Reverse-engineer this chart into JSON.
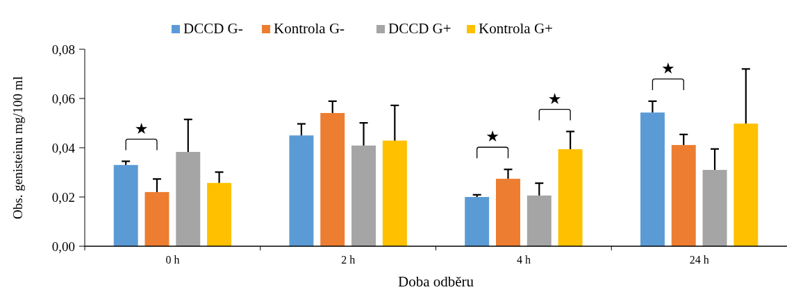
{
  "chart_data": {
    "type": "bar",
    "xlabel": "Doba odběru",
    "ylabel": "Obs. genisteinu mg/100 ml",
    "categories": [
      "0 h",
      "2 h",
      "4 h",
      "24 h"
    ],
    "series": [
      {
        "name": "DCCD G-",
        "color": "#5b9bd5",
        "values": [
          0.033,
          0.045,
          0.02,
          0.0543
        ],
        "errors": [
          [
            0.033,
            0.0345
          ],
          [
            0.045,
            0.0497
          ],
          [
            0.02,
            0.0209
          ],
          [
            0.0543,
            0.0589
          ]
        ]
      },
      {
        "name": "Kontrola G-",
        "color": "#ed7d31",
        "values": [
          0.022,
          0.0541,
          0.0274,
          0.0411
        ],
        "errors": [
          [
            0.022,
            0.0273
          ],
          [
            0.0541,
            0.0589
          ],
          [
            0.0274,
            0.0312
          ],
          [
            0.0411,
            0.0454
          ]
        ]
      },
      {
        "name": "DCCD G+",
        "color": "#a5a5a5",
        "values": [
          0.0383,
          0.0409,
          0.0206,
          0.031
        ],
        "errors": [
          [
            0.0383,
            0.0515
          ],
          [
            0.0409,
            0.0501
          ],
          [
            0.0206,
            0.0256
          ],
          [
            0.031,
            0.0395
          ]
        ]
      },
      {
        "name": "Kontrola G+",
        "color": "#ffc000",
        "values": [
          0.0257,
          0.0429,
          0.0394,
          0.0498
        ],
        "errors": [
          [
            0.0257,
            0.0301
          ],
          [
            0.0429,
            0.0572
          ],
          [
            0.0394,
            0.0466
          ],
          [
            0.0498,
            0.072
          ]
        ]
      }
    ],
    "ylim": [
      0,
      0.08
    ],
    "yticks": [
      {
        "value": 0,
        "label": "0,00"
      },
      {
        "value": 0.02,
        "label": "0,02"
      },
      {
        "value": 0.04,
        "label": "0,04"
      },
      {
        "value": 0.06,
        "label": "0,06"
      },
      {
        "value": 0.08,
        "label": "0,08"
      }
    ],
    "annotations": [
      "★",
      "★",
      "★",
      "★"
    ],
    "legend": "top",
    "grid": false
  }
}
